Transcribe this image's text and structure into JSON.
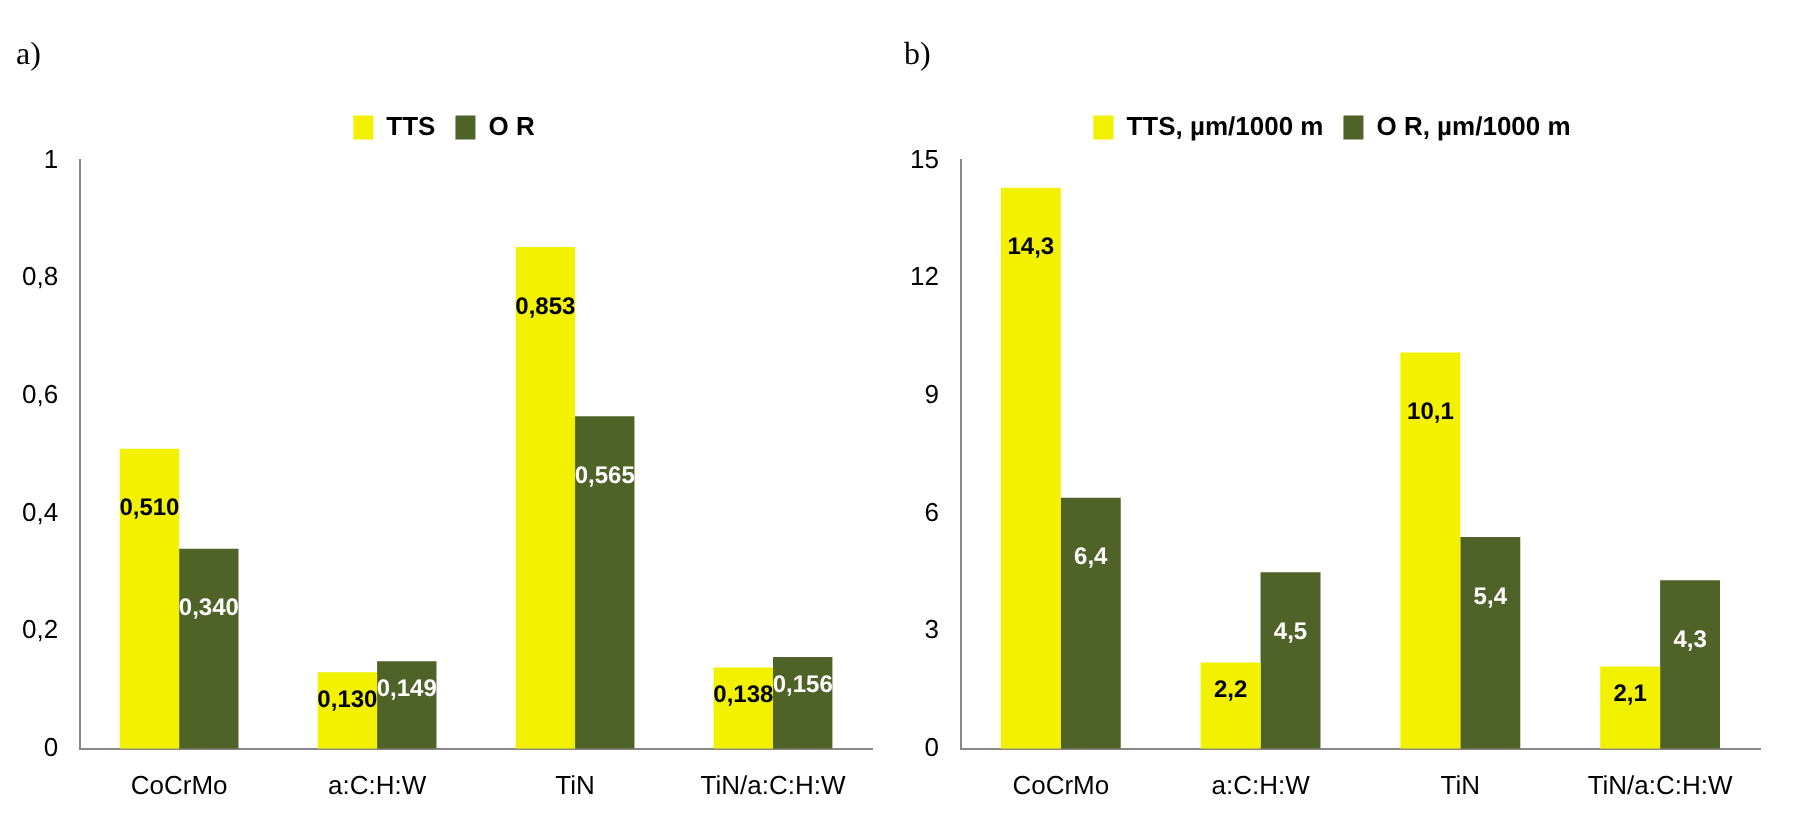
{
  "chart_data": [
    {
      "type": "bar",
      "title": "a)",
      "categories": [
        "CoCrMo",
        "a:C:H:W",
        "TiN",
        "TiN/a:C:H:W"
      ],
      "series": [
        {
          "name": "TTS",
          "color": "#f2f200",
          "values": [
            0.51,
            0.13,
            0.853,
            0.138
          ],
          "value_labels": [
            "0,510",
            "0,130",
            "0,853",
            "0,138"
          ]
        },
        {
          "name": "O R",
          "color": "#4f6228",
          "values": [
            0.34,
            0.149,
            0.565,
            0.156
          ],
          "value_labels": [
            "0,340",
            "0,149",
            "0,565",
            "0,156"
          ]
        }
      ],
      "ylim": [
        0,
        1
      ],
      "yticks": [
        0,
        {
          "value": 0.2,
          "label": "0,2"
        },
        {
          "value": 0.4,
          "label": "0,4"
        },
        {
          "value": 0.6,
          "label": "0,6"
        },
        {
          "value": 0.8,
          "label": "0,8"
        },
        1
      ],
      "grid": false,
      "legend": "top"
    },
    {
      "type": "bar",
      "title": "b)",
      "categories": [
        "CoCrMo",
        "a:C:H:W",
        "TiN",
        "TiN/a:C:H:W"
      ],
      "series": [
        {
          "name": "TTS, µm/1000 m",
          "color": "#f2f200",
          "values": [
            14.3,
            2.2,
            10.1,
            2.1
          ],
          "value_labels": [
            "14,3",
            "2,2",
            "10,1",
            "2,1"
          ]
        },
        {
          "name": "O R, µm/1000 m",
          "color": "#4f6228",
          "values": [
            6.4,
            4.5,
            5.4,
            4.3
          ],
          "value_labels": [
            "6,4",
            "4,5",
            "5,4",
            "4,3"
          ]
        }
      ],
      "ylim": [
        0,
        15
      ],
      "yticks": [
        0,
        3,
        6,
        9,
        12,
        15
      ],
      "grid": false,
      "legend": "top"
    }
  ]
}
